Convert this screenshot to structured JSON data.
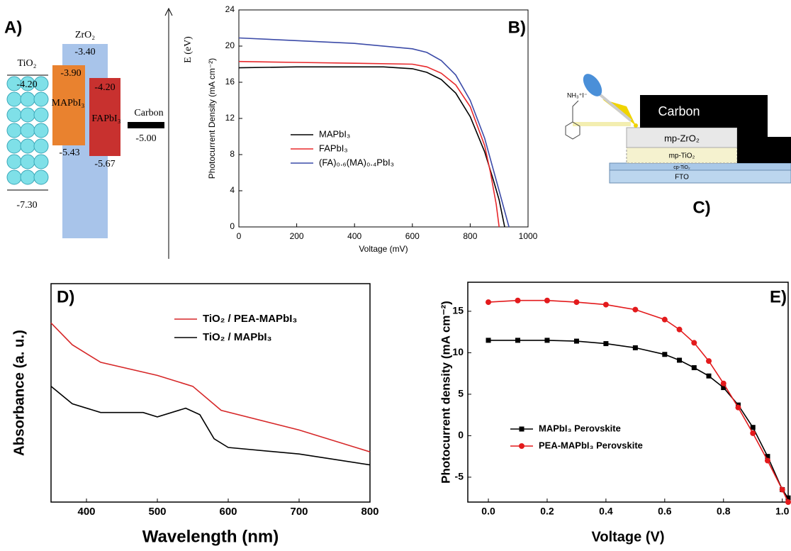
{
  "band_diagram": {
    "label": "A)",
    "axis_label": "E (eV)",
    "tio2": {
      "name": "TiO₂",
      "cb": "-4.20",
      "vb": "-7.30"
    },
    "zro2": {
      "name": "ZrO₂",
      "cb": "-3.40"
    },
    "mapbi3": {
      "name": "MAPbI₃",
      "cb": "-3.90",
      "vb": "-5.43"
    },
    "fapbi3": {
      "name": "FAPbI₃",
      "cb": "-4.20",
      "vb": "-5.67"
    },
    "carbon": {
      "name": "Carbon",
      "level": "-5.00"
    }
  },
  "device_diagram": {
    "label": "C)",
    "molecule": "NH₃⁺I⁻",
    "layers": [
      "Carbon",
      "mp-ZrO₂",
      "mp-TiO₂",
      "cp-TiO₂",
      "FTO"
    ]
  },
  "chart_data": [
    {
      "type": "line",
      "panel_label": "B)",
      "x_label": "Voltage (mV)",
      "y_label": "Photocurrent Density (mA cm⁻²)",
      "xlim": [
        0,
        1000
      ],
      "xticks": [
        0,
        200,
        400,
        600,
        800,
        1000
      ],
      "ylim": [
        0,
        24
      ],
      "yticks": [
        0,
        4,
        8,
        12,
        16,
        20,
        24
      ],
      "series": [
        {
          "name": "MAPbI₃",
          "color": "#000000",
          "x": [
            0,
            200,
            400,
            500,
            600,
            650,
            700,
            750,
            800,
            850,
            880,
            900,
            919
          ],
          "values": [
            17.6,
            17.7,
            17.7,
            17.7,
            17.5,
            17.1,
            16.3,
            14.8,
            12.2,
            8.3,
            5.2,
            3.0,
            0
          ]
        },
        {
          "name": "FAPbI₃",
          "color": "#e8282b",
          "x": [
            0,
            200,
            400,
            600,
            650,
            700,
            750,
            800,
            850,
            870,
            890,
            900
          ],
          "values": [
            18.3,
            18.2,
            18.1,
            18.0,
            17.7,
            17.0,
            15.7,
            13.3,
            9.0,
            6.0,
            2.5,
            0
          ]
        },
        {
          "name": "(FA)₀.₆(MA)₀.₄PbI₃",
          "color": "#3c4ba8",
          "x": [
            0,
            200,
            400,
            600,
            650,
            700,
            750,
            800,
            850,
            900,
            934
          ],
          "values": [
            20.9,
            20.6,
            20.3,
            19.7,
            19.3,
            18.4,
            16.8,
            14.0,
            9.8,
            4.0,
            0
          ]
        }
      ]
    },
    {
      "type": "line",
      "panel_label": "D)",
      "x_label": "Wavelength (nm)",
      "y_label": "Absorbance (a. u.)",
      "xlim": [
        350,
        800
      ],
      "xticks": [
        400,
        500,
        600,
        700,
        800
      ],
      "ylim": [
        0,
        1
      ],
      "series": [
        {
          "name": "TiO₂ / PEA-MAPbI₃",
          "color": "#d62728",
          "x": [
            350,
            380,
            420,
            500,
            550,
            590,
            700,
            800
          ],
          "values": [
            0.82,
            0.72,
            0.64,
            0.58,
            0.53,
            0.42,
            0.33,
            0.23
          ]
        },
        {
          "name": "TiO₂ / MAPbI₃",
          "color": "#000000",
          "x": [
            350,
            380,
            420,
            480,
            500,
            540,
            560,
            580,
            600,
            700,
            800
          ],
          "values": [
            0.53,
            0.45,
            0.41,
            0.41,
            0.39,
            0.43,
            0.4,
            0.29,
            0.25,
            0.22,
            0.17
          ]
        }
      ]
    },
    {
      "type": "line",
      "panel_label": "E)",
      "x_label": "Voltage (V)",
      "y_label": "Photocurrent density (mA cm⁻²)",
      "xlim": [
        -0.07,
        1.02
      ],
      "xticks": [
        {
          "value": 0,
          "label": "0.0"
        },
        0.2,
        0.4,
        0.6,
        0.8,
        {
          "value": 1,
          "label": "1.0"
        }
      ],
      "ylim": [
        -8,
        18.5
      ],
      "yticks": [
        -5,
        0,
        5,
        10,
        15
      ],
      "series": [
        {
          "name": "MAPbI₃ Perovskite",
          "color": "#000000",
          "marker": "square",
          "x": [
            0,
            0.1,
            0.2,
            0.3,
            0.4,
            0.5,
            0.6,
            0.65,
            0.7,
            0.75,
            0.8,
            0.85,
            0.9,
            0.95,
            1.0,
            1.02
          ],
          "values": [
            11.5,
            11.5,
            11.5,
            11.4,
            11.1,
            10.6,
            9.8,
            9.1,
            8.2,
            7.2,
            5.8,
            3.7,
            1.0,
            -2.5,
            -6.5,
            -7.5
          ]
        },
        {
          "name": "PEA-MAPbI₃ Perovskite",
          "color": "#e31a1c",
          "marker": "circle",
          "x": [
            0,
            0.1,
            0.2,
            0.3,
            0.4,
            0.5,
            0.6,
            0.65,
            0.7,
            0.75,
            0.8,
            0.85,
            0.9,
            0.95,
            1.0,
            1.02
          ],
          "values": [
            16.1,
            16.3,
            16.3,
            16.1,
            15.8,
            15.2,
            14.0,
            12.8,
            11.2,
            9.0,
            6.3,
            3.4,
            0.3,
            -3.0,
            -6.5,
            -8.0
          ]
        }
      ]
    }
  ]
}
